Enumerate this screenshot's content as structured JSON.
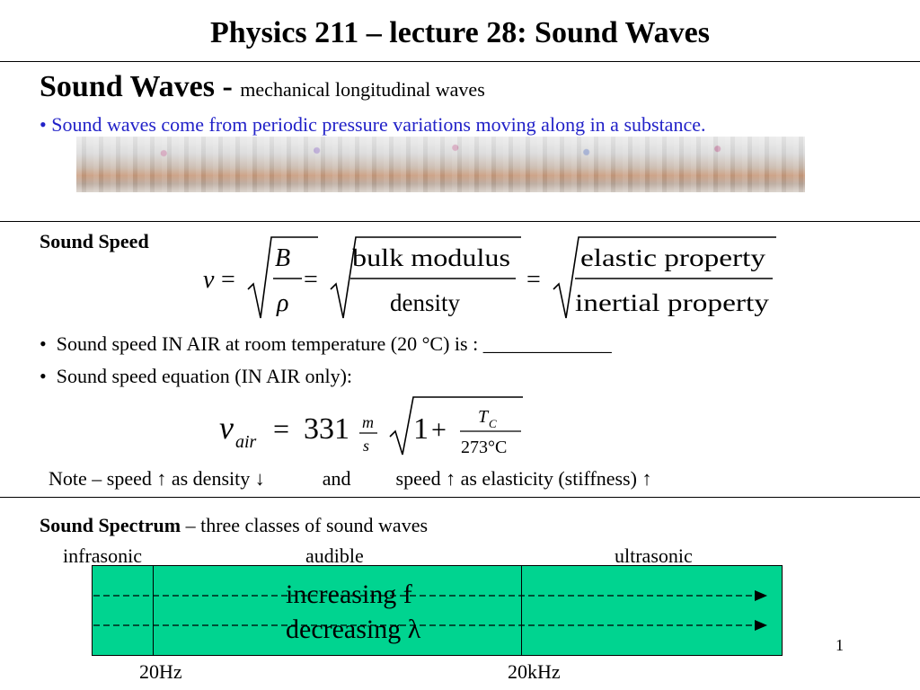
{
  "title": "Physics 211 – lecture 28: Sound Waves",
  "sec1": {
    "heading": "Sound Waves - ",
    "subheading": "mechanical longitudinal waves",
    "bullet_marker": "•",
    "bullet": "Sound waves come from periodic pressure variations moving along in a substance."
  },
  "speed": {
    "heading": "Sound Speed",
    "eq_v": "v",
    "eq_B": "B",
    "eq_rho": "ρ",
    "eq_bulk": "bulk  modulus",
    "eq_density": "density",
    "eq_elastic": "elastic  property",
    "eq_inertial": "inertial  property",
    "bullet_marker": "•",
    "bullet1": "Sound speed IN AIR at room temperature (20 °C) is : _____________",
    "bullet2": "Sound speed equation (IN AIR only):",
    "air_v": "v",
    "air_sub": "air",
    "air_331": "331",
    "air_m": "m",
    "air_s": "s",
    "air_one": "1",
    "air_T": "T",
    "air_C": "C",
    "air_273": "273°C"
  },
  "note": {
    "prefix": "Note – speed ",
    "up": "↑",
    "as_density": " as density ",
    "down": "↓",
    "and": "and",
    "speed2": "speed ",
    "as_elast": " as elasticity (stiffness) "
  },
  "spectrum": {
    "heading": "Sound Spectrum",
    "heading_rest": " – three classes of sound waves",
    "labels": [
      "infrasonic",
      "audible",
      "ultrasonic"
    ],
    "arrow1": "increasing f",
    "arrow2": "decreasing λ",
    "ticks": [
      "20Hz",
      "20kHz"
    ]
  },
  "page_number": "1"
}
